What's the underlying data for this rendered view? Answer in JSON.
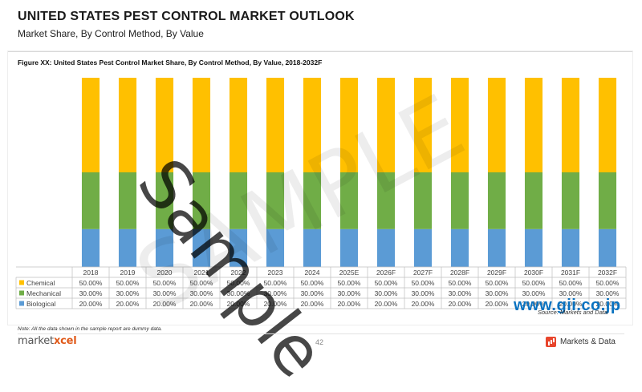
{
  "header": {
    "title": "UNITED STATES PEST CONTROL MARKET OUTLOOK",
    "subtitle": "Market Share, By Control Method, By Value"
  },
  "figure_caption": "Figure XX: United States Pest Control Market Share, By Control Method, By Value, 2018-2032F",
  "chart_data": {
    "type": "bar",
    "stacked": true,
    "normalized": true,
    "categories": [
      "2018",
      "2019",
      "2020",
      "2021",
      "2022",
      "2023",
      "2024",
      "2025E",
      "2026F",
      "2027F",
      "2028F",
      "2029F",
      "2030F",
      "2031F",
      "2032F"
    ],
    "series": [
      {
        "name": "Chemical",
        "color": "#ffc000",
        "values": [
          50,
          50,
          50,
          50,
          50,
          50,
          50,
          50,
          50,
          50,
          50,
          50,
          50,
          50,
          50
        ],
        "labels": [
          "50.00%",
          "50.00%",
          "50.00%",
          "50.00%",
          "50.00%",
          "50.00%",
          "50.00%",
          "50.00%",
          "50.00%",
          "50.00%",
          "50.00%",
          "50.00%",
          "50.00%",
          "50.00%",
          "50.00%"
        ]
      },
      {
        "name": "Mechanical",
        "color": "#70ad47",
        "values": [
          30,
          30,
          30,
          30,
          30,
          30,
          30,
          30,
          30,
          30,
          30,
          30,
          30,
          30,
          30
        ],
        "labels": [
          "30.00%",
          "30.00%",
          "30.00%",
          "30.00%",
          "30.00%",
          "30.00%",
          "30.00%",
          "30.00%",
          "30.00%",
          "30.00%",
          "30.00%",
          "30.00%",
          "30.00%",
          "30.00%",
          "30.00%"
        ]
      },
      {
        "name": "Biological",
        "color": "#5b9bd5",
        "values": [
          20,
          20,
          20,
          20,
          20,
          20,
          20,
          20,
          20,
          20,
          20,
          20,
          20,
          20,
          20
        ],
        "labels": [
          "20.00%",
          "20.00%",
          "20.00%",
          "20.00%",
          "20.00%",
          "20.00%",
          "20.00%",
          "20.00%",
          "20.00%",
          "20.00%",
          "20.00%",
          "20.00%",
          "20.00%",
          "20.00%",
          "20.00%"
        ]
      }
    ],
    "ylim": [
      0,
      100
    ],
    "stack_order_bottom_to_top": [
      "Biological",
      "Mechanical",
      "Chemical"
    ],
    "data_table": true,
    "legend": "data-table"
  },
  "watermarks": {
    "sample": "Sample",
    "sample_faint": "SAMPLE",
    "gii": "www.gii.co.jp"
  },
  "source_note": "Source: Markets and Data",
  "footer": {
    "note": "Note: All the data shown in the sample report are dummy data.",
    "brand_left_a": "market",
    "brand_left_b": "xcel",
    "page_number": "42",
    "brand_right": "Markets & Data"
  }
}
